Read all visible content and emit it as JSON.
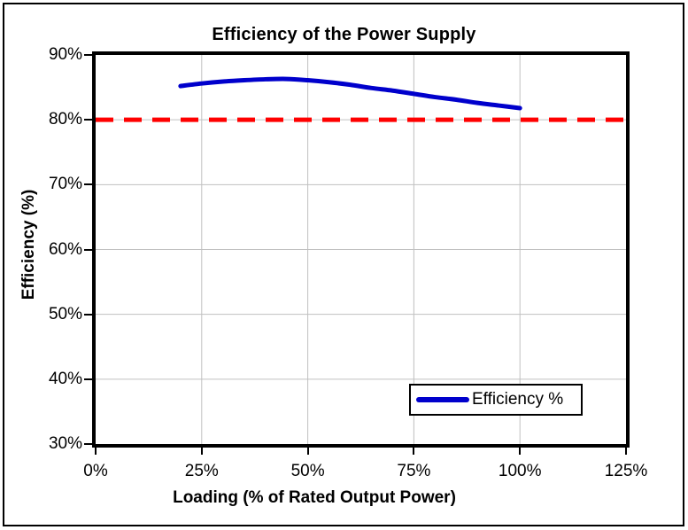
{
  "colors": {
    "background": "#ffffff",
    "frame_border": "#000000",
    "plot_border": "#000000",
    "gridline": "#c0c0c0",
    "series_blue": "#0000cc",
    "reference_red": "#ff0000",
    "text": "#000000"
  },
  "chart_data": {
    "type": "line",
    "title": "Efficiency of the Power Supply",
    "xlabel": "Loading (% of Rated Output Power)",
    "ylabel": "Efficiency (%)",
    "xlim": [
      0,
      125
    ],
    "ylim": [
      30,
      90
    ],
    "grid": true,
    "x_ticks": [
      {
        "value": 0,
        "label": "0%"
      },
      {
        "value": 25,
        "label": "25%"
      },
      {
        "value": 50,
        "label": "50%"
      },
      {
        "value": 75,
        "label": "75%"
      },
      {
        "value": 100,
        "label": "100%"
      },
      {
        "value": 125,
        "label": "125%"
      }
    ],
    "y_ticks": [
      {
        "value": 30,
        "label": "30%"
      },
      {
        "value": 40,
        "label": "40%"
      },
      {
        "value": 50,
        "label": "50%"
      },
      {
        "value": 60,
        "label": "60%"
      },
      {
        "value": 70,
        "label": "70%"
      },
      {
        "value": 80,
        "label": "80%"
      },
      {
        "value": 90,
        "label": "90%"
      }
    ],
    "series": [
      {
        "name": "Efficiency %",
        "color": "#0000cc",
        "line_style": "solid",
        "line_width": 5,
        "smooth": true,
        "points": [
          [
            20,
            85.2
          ],
          [
            25,
            85.6
          ],
          [
            30,
            85.9
          ],
          [
            35,
            86.1
          ],
          [
            40,
            86.25
          ],
          [
            45,
            86.3
          ],
          [
            50,
            86.1
          ],
          [
            55,
            85.8
          ],
          [
            60,
            85.4
          ],
          [
            65,
            84.9
          ],
          [
            70,
            84.5
          ],
          [
            75,
            84.0
          ],
          [
            80,
            83.5
          ],
          [
            85,
            83.1
          ],
          [
            90,
            82.6
          ],
          [
            95,
            82.2
          ],
          [
            100,
            81.8
          ]
        ]
      }
    ],
    "reference_line": {
      "y": 80,
      "color": "#ff0000",
      "line_style": "dashed",
      "line_width": 5
    },
    "legend": {
      "position": "inside-bottom-right",
      "entries": [
        "Efficiency %"
      ]
    }
  }
}
